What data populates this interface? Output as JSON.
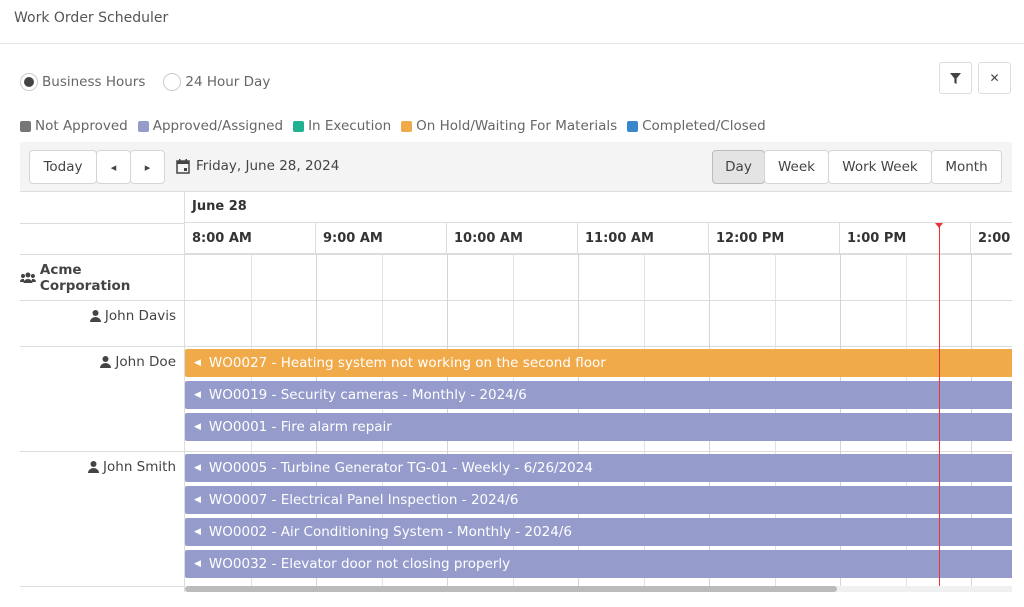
{
  "title": "Work Order Scheduler",
  "hours_mode": {
    "options": [
      "Business Hours",
      "24 Hour Day"
    ],
    "selected": "Business Hours"
  },
  "toolbar_icons": {
    "filter": "filter-icon",
    "close": "close-icon"
  },
  "legend": [
    {
      "label": "Not Approved",
      "color": "#777777"
    },
    {
      "label": "Approved/Assigned",
      "color": "#959ccc"
    },
    {
      "label": "In Execution",
      "color": "#1fb190"
    },
    {
      "label": "On Hold/Waiting For Materials",
      "color": "#f1aa4a"
    },
    {
      "label": "Completed/Closed",
      "color": "#3a86cc"
    }
  ],
  "nav": {
    "today": "Today",
    "prev": "◂",
    "next": "▸",
    "date": "Friday, June 28, 2024"
  },
  "views": {
    "day": "Day",
    "week": "Week",
    "work_week": "Work Week",
    "month": "Month",
    "selected": "Day"
  },
  "timeline": {
    "day": "June 28",
    "hours": [
      "8:00 AM",
      "9:00 AM",
      "10:00 AM",
      "11:00 AM",
      "12:00 PM",
      "1:00 PM",
      "2:00 PM"
    ]
  },
  "resources": [
    {
      "name": "Acme Corporation",
      "type": "group"
    },
    {
      "name": "John Davis",
      "type": "person"
    },
    {
      "name": "John Doe",
      "type": "person"
    },
    {
      "name": "John Smith",
      "type": "person"
    }
  ],
  "events": [
    {
      "resource": "John Doe",
      "label": "WO0027 - Heating system not working on the second floor",
      "status": "On Hold/Waiting For Materials",
      "color": "#f1aa4a"
    },
    {
      "resource": "John Doe",
      "label": "WO0019 - Security cameras - Monthly - 2024/6",
      "status": "Approved/Assigned",
      "color": "#959ccc"
    },
    {
      "resource": "John Doe",
      "label": "WO0001 - Fire alarm repair",
      "status": "Approved/Assigned",
      "color": "#959ccc"
    },
    {
      "resource": "John Smith",
      "label": "WO0005 - Turbine Generator TG-01 - Weekly - 6/26/2024",
      "status": "Approved/Assigned",
      "color": "#959ccc"
    },
    {
      "resource": "John Smith",
      "label": "WO0007 - Electrical Panel Inspection - 2024/6",
      "status": "Approved/Assigned",
      "color": "#959ccc"
    },
    {
      "resource": "John Smith",
      "label": "WO0002 - Air Conditioning System - Monthly - 2024/6",
      "status": "Approved/Assigned",
      "color": "#959ccc"
    },
    {
      "resource": "John Smith",
      "label": "WO0032 - Elevator door not closing properly",
      "status": "Approved/Assigned",
      "color": "#959ccc"
    }
  ]
}
